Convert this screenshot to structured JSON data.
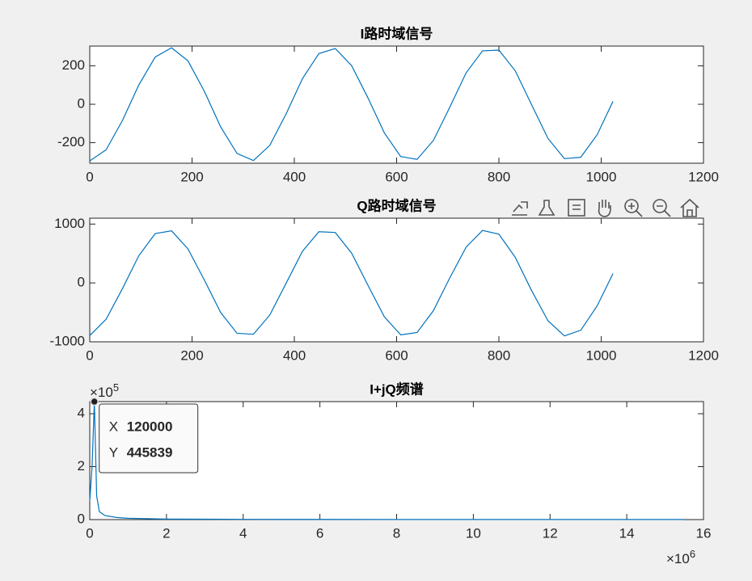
{
  "chart_data": [
    {
      "type": "line",
      "title": "I路时域信号",
      "x": [
        0,
        32,
        64,
        96,
        128,
        160,
        192,
        224,
        256,
        288,
        320,
        352,
        384,
        416,
        448,
        480,
        512,
        544,
        576,
        608,
        640,
        672,
        704,
        736,
        768,
        800,
        832,
        864,
        896,
        928,
        960,
        992,
        1023
      ],
      "series": [
        {
          "color": "#0072bd",
          "values": [
            -295,
            -237,
            -84,
            101,
            246,
            294,
            226,
            68,
            -118,
            -256,
            -293,
            -214,
            -50,
            134,
            264,
            290,
            201,
            33,
            -149,
            -272,
            -287,
            -188,
            -15,
            164,
            278,
            282,
            174,
            -3,
            -178,
            -283,
            -276,
            -159,
            15
          ]
        }
      ],
      "xlim": [
        0,
        1200
      ],
      "xticks": [
        0,
        200,
        400,
        600,
        800,
        1000,
        1200
      ],
      "ylim": [
        -307,
        303
      ],
      "yticks": [
        -200,
        0,
        200
      ],
      "grid": false
    },
    {
      "type": "line",
      "title": "Q路时域信号",
      "x": [
        0,
        32,
        64,
        96,
        128,
        160,
        192,
        224,
        256,
        288,
        320,
        352,
        384,
        416,
        448,
        480,
        512,
        544,
        576,
        608,
        640,
        672,
        704,
        736,
        768,
        800,
        832,
        864,
        896,
        928,
        960,
        992,
        1023
      ],
      "series": [
        {
          "color": "#0072bd",
          "values": [
            -894,
            -616,
            -95,
            463,
            838,
            885,
            579,
            50,
            -503,
            -855,
            -872,
            -545,
            -4,
            539,
            870,
            857,
            507,
            -41,
            -575,
            -882,
            -842,
            -470,
            86,
            610,
            892,
            828,
            435,
            -131,
            -643,
            -900,
            -803,
            -391,
            158
          ]
        }
      ],
      "xlim": [
        0,
        1200
      ],
      "xticks": [
        0,
        200,
        400,
        600,
        800,
        1000,
        1200
      ],
      "ylim": [
        -1000,
        1100
      ],
      "yticks": [
        -1000,
        0,
        1000
      ],
      "grid": false
    },
    {
      "type": "line",
      "title": "I+jQ频谱",
      "x": [
        0,
        60000,
        120000,
        180000,
        250000,
        400000,
        700000,
        1000000,
        2000000,
        4000000,
        8000000,
        12000000,
        15500000
      ],
      "series": [
        {
          "color": "#0072bd",
          "values": [
            70000,
            200000,
            445839,
            90000,
            30000,
            15000,
            8000,
            5000,
            2000,
            1000,
            500,
            400,
            300
          ]
        }
      ],
      "xlim": [
        0,
        16000000
      ],
      "xticks": [
        {
          "value": 0,
          "label": "0"
        },
        {
          "value": 2000000,
          "label": "2"
        },
        {
          "value": 4000000,
          "label": "4"
        },
        {
          "value": 6000000,
          "label": "6"
        },
        {
          "value": 8000000,
          "label": "8"
        },
        {
          "value": 10000000,
          "label": "10"
        },
        {
          "value": 12000000,
          "label": "12"
        },
        {
          "value": 14000000,
          "label": "14"
        },
        {
          "value": 16000000,
          "label": "16"
        }
      ],
      "ylim": [
        0,
        445839
      ],
      "yticks": [
        {
          "value": 0,
          "label": "0"
        },
        {
          "value": 200000,
          "label": "2"
        },
        {
          "value": 400000,
          "label": "4"
        }
      ],
      "x_exponent": {
        "base": "×10",
        "power": "6"
      },
      "y_exponent": {
        "base": "×10",
        "power": "5"
      },
      "datatip": {
        "index": 2,
        "x_label": "X",
        "y_label": "Y"
      },
      "grid": false
    }
  ]
}
